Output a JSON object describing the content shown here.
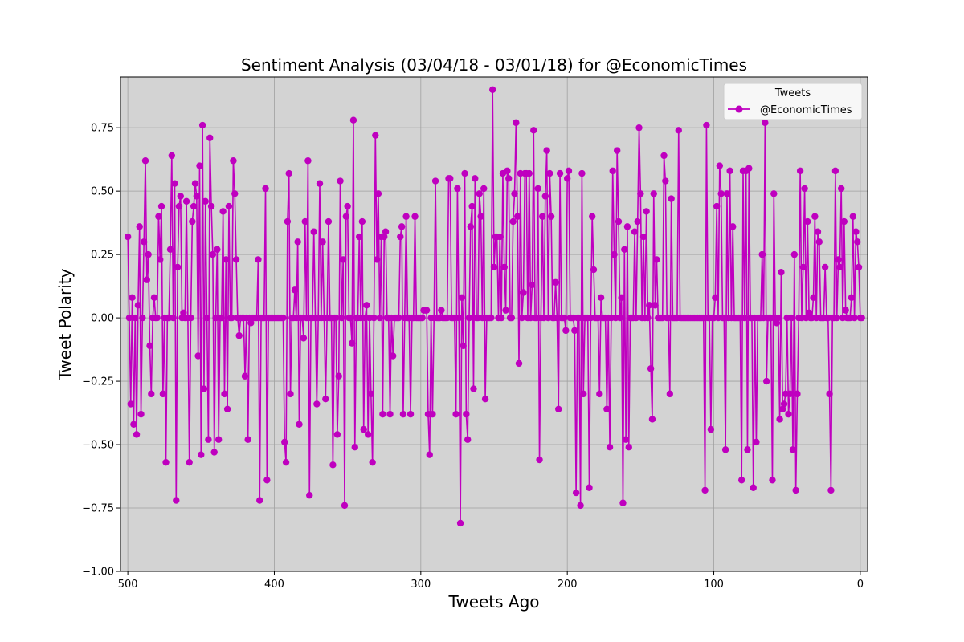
{
  "chart_data": {
    "type": "line",
    "title": "Sentiment Analysis (03/04/18 - 03/01/18) for @EconomicTimes",
    "xlabel": "Tweets Ago",
    "ylabel": "Tweet Polarity",
    "xlim": [
      505,
      -5
    ],
    "ylim": [
      -1.0,
      0.95
    ],
    "x_reversed": true,
    "xticks": [
      500,
      400,
      300,
      200,
      100,
      0
    ],
    "yticks": [
      -1.0,
      -0.75,
      -0.5,
      -0.25,
      0.0,
      0.25,
      0.5,
      0.75
    ],
    "ytick_labels": [
      "−1.00",
      "−0.75",
      "−0.50",
      "−0.25",
      "0.00",
      "0.25",
      "0.50",
      "0.75"
    ],
    "grid": true,
    "background_color": "#d3d3d3",
    "series_color": "#bf00bf",
    "legend": {
      "title": "Tweets",
      "placement": "top-right",
      "entries": [
        "@EconomicTimes"
      ]
    },
    "series": [
      {
        "name": "@EconomicTimes",
        "x_start": 500,
        "x_step": -1,
        "values": [
          0.32,
          0,
          -0.34,
          0.08,
          -0.42,
          0.0,
          -0.46,
          0.05,
          0.36,
          -0.38,
          0,
          0.3,
          0.62,
          0.15,
          0.25,
          -0.11,
          -0.3,
          0,
          0.08,
          0.0,
          0,
          0.4,
          0.23,
          0.44,
          -0.3,
          0,
          -0.57,
          0,
          0,
          0.27,
          0.64,
          0,
          0.53,
          -0.72,
          0.2,
          0.44,
          0.48,
          0,
          0.02,
          0,
          0.46,
          0,
          -0.57,
          0,
          0.38,
          0.44,
          0.53,
          0.48,
          -0.15,
          0.6,
          -0.54,
          0.76,
          -0.28,
          0.46,
          0,
          -0.48,
          0.71,
          0.44,
          0.25,
          -0.53,
          0,
          0.27,
          -0.48,
          0,
          0,
          0.42,
          -0.3,
          0.23,
          -0.36,
          0.44,
          0,
          0,
          0.62,
          0.49,
          0.23,
          0,
          -0.07,
          0,
          0,
          0,
          -0.23,
          0,
          -0.48,
          0,
          -0.02,
          0,
          0,
          0,
          0,
          0.23,
          -0.72,
          0,
          0,
          0,
          0.51,
          -0.64,
          0,
          0,
          0,
          0,
          0,
          0,
          0,
          0,
          0,
          0,
          0,
          -0.49,
          -0.57,
          0.38,
          0.57,
          -0.3,
          0,
          0,
          0.11,
          0,
          0.3,
          -0.42,
          0,
          0,
          -0.08,
          0.38,
          0,
          0.62,
          -0.7,
          0,
          0,
          0.34,
          0,
          -0.34,
          0,
          0.53,
          0,
          0.3,
          0,
          -0.32,
          0,
          0.38,
          0,
          0,
          -0.58,
          0,
          0,
          -0.46,
          -0.23,
          0.54,
          0,
          0.23,
          -0.74,
          0.4,
          0.44,
          0,
          0,
          -0.1,
          0.78,
          -0.51,
          0,
          0,
          0.32,
          0,
          0.38,
          -0.44,
          0,
          0.05,
          -0.46,
          0,
          -0.3,
          -0.57,
          0,
          0.72,
          0.23,
          0.49,
          0,
          0.32,
          -0.38,
          0.32,
          0.34,
          0,
          0,
          -0.38,
          0,
          -0.15,
          0,
          0,
          0,
          0,
          0.32,
          0.36,
          -0.38,
          0,
          0.4,
          0,
          0,
          -0.38,
          0,
          0,
          0.4,
          0,
          0,
          0,
          0,
          0,
          0.03,
          0.03,
          0.03,
          -0.38,
          -0.54,
          0,
          -0.38,
          0,
          0.54,
          0,
          0,
          0,
          0.03,
          0,
          0,
          0,
          0,
          0.55,
          0.55,
          0,
          0,
          0,
          -0.38,
          0.51,
          0,
          -0.81,
          0.08,
          -0.11,
          0.57,
          -0.38,
          -0.48,
          0,
          0.36,
          0.44,
          -0.28,
          0.55,
          0,
          0,
          0.49,
          0.4,
          0,
          0.51,
          -0.32,
          0,
          0,
          0,
          0,
          0.9,
          0.2,
          0.32,
          0.32,
          0,
          0.32,
          0,
          0.57,
          0.2,
          0.03,
          0.58,
          0.55,
          0,
          0,
          0.38,
          0.49,
          0.77,
          0.4,
          -0.18,
          0.57,
          0,
          0.1,
          0.57,
          0.57,
          0,
          0.57,
          0,
          0.13,
          0.74,
          0,
          0,
          0.51,
          -0.56,
          0,
          0.4,
          0,
          0.48,
          0.66,
          0,
          0.57,
          0.4,
          0,
          0,
          0.14,
          0,
          -0.36,
          0.57,
          0,
          0,
          0,
          -0.05,
          0.55,
          0.58,
          0,
          0,
          0,
          -0.05,
          -0.69,
          0,
          0,
          -0.74,
          0.57,
          -0.3,
          0,
          0,
          0,
          -0.67,
          0,
          0.4,
          0.19,
          0,
          0,
          0,
          -0.3,
          0.08,
          0,
          0,
          0,
          -0.36,
          0,
          -0.51,
          0,
          0.58,
          0.25,
          0,
          0.66,
          0.38,
          0,
          0.08,
          -0.73,
          0.27,
          -0.48,
          0.36,
          -0.51,
          0,
          0,
          0,
          0.34,
          0,
          0.38,
          0.75,
          0.49,
          0,
          0.32,
          0,
          0.42,
          0,
          0.05,
          -0.2,
          -0.4,
          0.49,
          0.05,
          0.23,
          0,
          0,
          0,
          0,
          0.64,
          0.54,
          0,
          0,
          -0.3,
          0.47,
          0,
          0,
          0,
          0,
          0.74,
          0,
          0,
          0,
          0,
          0,
          0,
          0,
          0,
          0,
          0,
          0,
          0,
          0,
          0,
          0,
          0,
          0,
          -0.68,
          0.76,
          0,
          0,
          -0.44,
          0,
          0,
          0.08,
          0.44,
          0,
          0.6,
          0.49,
          0,
          0,
          -0.52,
          0.49,
          0,
          0.58,
          0,
          0.36,
          0,
          0,
          0,
          0,
          0,
          -0.64,
          0.58,
          0,
          0.58,
          -0.52,
          0.59,
          0,
          0,
          -0.67,
          0,
          -0.49,
          0,
          0,
          0,
          0.25,
          0,
          0.77,
          -0.25,
          0,
          0,
          0,
          -0.64,
          0.49,
          0,
          -0.02,
          0,
          -0.4,
          0.18,
          -0.36,
          -0.34,
          -0.3,
          0,
          -0.38,
          -0.3,
          0,
          -0.52,
          0.25,
          -0.68,
          -0.3,
          0,
          0.58,
          0,
          0.2,
          0.51,
          0,
          0.38,
          0.02,
          0,
          0,
          0.08,
          0.4,
          0,
          0.34,
          0.3,
          0,
          0,
          0,
          0.2,
          0,
          0,
          -0.3,
          -0.68,
          0,
          0,
          0.58,
          0,
          0.23,
          0.2,
          0.51,
          0,
          0.38,
          0.03,
          0,
          0,
          0,
          0.08,
          0.4,
          0,
          0.34,
          0.3,
          0.2,
          0,
          0
        ]
      }
    ]
  }
}
